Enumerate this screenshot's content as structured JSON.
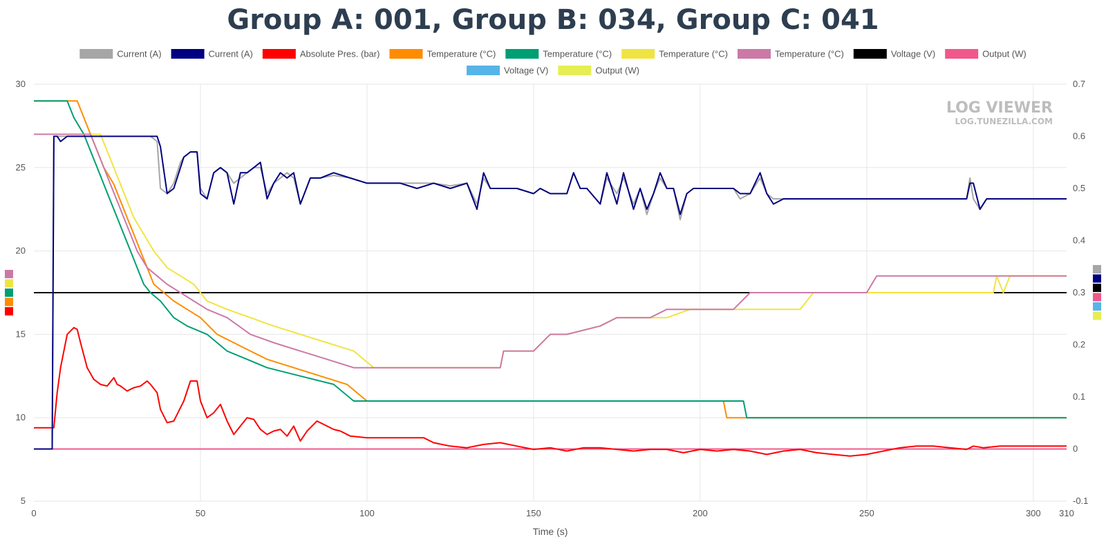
{
  "chart_data": {
    "type": "line",
    "title": "Group A: 001, Group B: 034, Group C: 041",
    "xlabel": "Time (s)",
    "xlim": [
      0,
      310
    ],
    "x_ticks": [
      0,
      50,
      100,
      150,
      200,
      250,
      300,
      310
    ],
    "y_left": {
      "range": [
        5,
        30
      ],
      "ticks": [
        5,
        10,
        15,
        20,
        25,
        30
      ]
    },
    "y_right": {
      "range": [
        -0.1,
        0.7
      ],
      "ticks": [
        -0.1,
        0,
        0.1,
        0.2,
        0.3,
        0.4,
        0.5,
        0.6,
        0.7
      ]
    },
    "grid": true,
    "legend_position": "top",
    "watermark": {
      "line1": "LOG VIEWER",
      "line2": "LOG.TUNEZILLA.COM"
    },
    "series": [
      {
        "name": "Current (A)",
        "color": "#a6a6a6",
        "axis": "right",
        "x": [
          0,
          5.5,
          6,
          7,
          10,
          15,
          20,
          25,
          30,
          35,
          37,
          38,
          40,
          42,
          44,
          45,
          47,
          49,
          50,
          52,
          54,
          56,
          58,
          60,
          62,
          64,
          66,
          68,
          70,
          72,
          74,
          76,
          78,
          80,
          83,
          86,
          90,
          95,
          100,
          105,
          110,
          115,
          120,
          125,
          130,
          133,
          135,
          137,
          140,
          145,
          150,
          152,
          155,
          160,
          162,
          164,
          166,
          170,
          172,
          175,
          177,
          180,
          182,
          184,
          186,
          188,
          190,
          192,
          194,
          196,
          198,
          200,
          205,
          210,
          212,
          215,
          218,
          220,
          222,
          225,
          230,
          235,
          240,
          250,
          260,
          270,
          280,
          281,
          282,
          284,
          286,
          290,
          300,
          310
        ],
        "y": [
          0,
          0,
          0.6,
          0.6,
          0.6,
          0.6,
          0.6,
          0.6,
          0.6,
          0.6,
          0.59,
          0.5,
          0.49,
          0.51,
          0.55,
          0.56,
          0.57,
          0.57,
          0.5,
          0.48,
          0.53,
          0.54,
          0.53,
          0.51,
          0.52,
          0.53,
          0.54,
          0.54,
          0.49,
          0.51,
          0.52,
          0.53,
          0.52,
          0.47,
          0.52,
          0.52,
          0.525,
          0.52,
          0.51,
          0.51,
          0.51,
          0.51,
          0.51,
          0.505,
          0.51,
          0.47,
          0.52,
          0.5,
          0.5,
          0.5,
          0.49,
          0.5,
          0.49,
          0.49,
          0.53,
          0.5,
          0.5,
          0.47,
          0.52,
          0.49,
          0.52,
          0.47,
          0.5,
          0.45,
          0.49,
          0.52,
          0.5,
          0.5,
          0.44,
          0.49,
          0.5,
          0.5,
          0.5,
          0.5,
          0.48,
          0.49,
          0.52,
          0.49,
          0.48,
          0.48,
          0.48,
          0.48,
          0.48,
          0.48,
          0.48,
          0.48,
          0.48,
          0.52,
          0.48,
          0.46,
          0.48,
          0.48,
          0.48,
          0.48
        ]
      },
      {
        "name": "Current (A)",
        "color": "#000080",
        "axis": "right",
        "x": [
          0,
          5.5,
          6,
          7,
          8,
          10,
          15,
          20,
          25,
          30,
          35,
          37,
          38,
          40,
          42,
          44,
          45,
          47,
          49,
          50,
          52,
          54,
          56,
          58,
          60,
          62,
          64,
          66,
          68,
          70,
          72,
          74,
          76,
          78,
          80,
          83,
          86,
          90,
          95,
          100,
          105,
          110,
          115,
          120,
          125,
          130,
          133,
          135,
          137,
          140,
          145,
          150,
          152,
          155,
          160,
          162,
          164,
          166,
          170,
          172,
          175,
          177,
          180,
          182,
          184,
          186,
          188,
          190,
          192,
          194,
          196,
          198,
          200,
          205,
          210,
          212,
          215,
          218,
          220,
          222,
          225,
          230,
          235,
          240,
          250,
          260,
          270,
          280,
          281,
          282,
          284,
          286,
          290,
          300,
          310
        ],
        "y": [
          0,
          0,
          0.6,
          0.6,
          0.59,
          0.6,
          0.6,
          0.6,
          0.6,
          0.6,
          0.6,
          0.6,
          0.58,
          0.49,
          0.5,
          0.54,
          0.56,
          0.57,
          0.57,
          0.49,
          0.48,
          0.53,
          0.54,
          0.53,
          0.47,
          0.53,
          0.53,
          0.54,
          0.55,
          0.48,
          0.51,
          0.53,
          0.52,
          0.53,
          0.47,
          0.52,
          0.52,
          0.53,
          0.52,
          0.51,
          0.51,
          0.51,
          0.5,
          0.51,
          0.5,
          0.51,
          0.46,
          0.53,
          0.5,
          0.5,
          0.5,
          0.49,
          0.5,
          0.49,
          0.49,
          0.53,
          0.5,
          0.5,
          0.47,
          0.53,
          0.47,
          0.53,
          0.46,
          0.5,
          0.46,
          0.49,
          0.53,
          0.5,
          0.5,
          0.45,
          0.49,
          0.5,
          0.5,
          0.5,
          0.5,
          0.49,
          0.49,
          0.53,
          0.49,
          0.47,
          0.48,
          0.48,
          0.48,
          0.48,
          0.48,
          0.48,
          0.48,
          0.48,
          0.51,
          0.51,
          0.46,
          0.48,
          0.48,
          0.48,
          0.48
        ]
      },
      {
        "name": "Absolute Pres. (bar)",
        "color": "#ff0000",
        "axis": "left",
        "x": [
          0,
          6,
          7,
          8,
          10,
          12,
          13,
          14,
          16,
          18,
          20,
          22,
          24,
          25,
          26,
          28,
          30,
          32,
          34,
          35,
          37,
          38,
          40,
          42,
          45,
          47,
          49,
          50,
          52,
          54,
          56,
          58,
          60,
          62,
          64,
          66,
          68,
          70,
          72,
          74,
          76,
          78,
          80,
          82,
          85,
          87,
          90,
          92,
          95,
          100,
          105,
          110,
          115,
          117,
          120,
          125,
          130,
          135,
          140,
          145,
          150,
          155,
          160,
          165,
          170,
          175,
          180,
          185,
          190,
          195,
          200,
          205,
          210,
          215,
          220,
          225,
          230,
          235,
          240,
          245,
          250,
          255,
          260,
          265,
          270,
          275,
          280,
          282,
          285,
          290,
          300,
          310
        ],
        "y": [
          9.4,
          9.4,
          11.5,
          13,
          15,
          15.4,
          15.3,
          14.5,
          13,
          12.3,
          12,
          11.9,
          12.4,
          12,
          11.9,
          11.6,
          11.8,
          11.9,
          12.2,
          12,
          11.5,
          10.5,
          9.7,
          9.8,
          11,
          12.2,
          12.2,
          11,
          10,
          10.3,
          10.8,
          9.8,
          9,
          9.5,
          10,
          9.9,
          9.3,
          9,
          9.2,
          9.3,
          8.9,
          9.5,
          8.6,
          9.2,
          9.8,
          9.6,
          9.3,
          9.2,
          8.9,
          8.8,
          8.8,
          8.8,
          8.8,
          8.8,
          8.5,
          8.3,
          8.2,
          8.4,
          8.5,
          8.3,
          8.1,
          8.2,
          8.0,
          8.2,
          8.2,
          8.1,
          8.0,
          8.1,
          8.1,
          7.9,
          8.1,
          8.0,
          8.1,
          8.0,
          7.8,
          8.0,
          8.1,
          7.9,
          7.8,
          7.7,
          7.8,
          8.0,
          8.2,
          8.3,
          8.3,
          8.2,
          8.1,
          8.3,
          8.2,
          8.3,
          8.3,
          8.3
        ]
      },
      {
        "name": "Temperature (°C)",
        "color": "#ff8c00",
        "axis": "left",
        "x": [
          0,
          13,
          15,
          17,
          19,
          21,
          24,
          26,
          28,
          30,
          32,
          34,
          36,
          39,
          42,
          46,
          50,
          55,
          60,
          65,
          70,
          78,
          86,
          94,
          100,
          118,
          125,
          207,
          208,
          212,
          230,
          250,
          270,
          290,
          300,
          310
        ],
        "y": [
          29,
          29,
          28,
          27,
          26,
          25,
          24,
          23,
          22,
          21,
          20,
          19,
          18,
          17.5,
          17,
          16.5,
          16,
          15,
          14.5,
          14,
          13.5,
          13,
          12.5,
          12,
          11,
          11,
          11,
          11,
          10,
          10,
          10,
          10,
          10,
          10,
          10,
          10
        ]
      },
      {
        "name": "Temperature (°C)",
        "color": "#009e73",
        "axis": "left",
        "x": [
          0,
          10,
          12,
          15,
          17,
          19,
          21,
          23,
          25,
          27,
          29,
          31,
          33,
          35,
          38,
          42,
          46,
          52,
          58,
          64,
          70,
          80,
          90,
          96,
          100,
          118,
          125,
          205,
          213,
          214,
          230,
          250,
          270,
          290,
          300,
          310
        ],
        "y": [
          29,
          29,
          28,
          27,
          26,
          25,
          24,
          23,
          22,
          21,
          20,
          19,
          18,
          17.5,
          17,
          16,
          15.5,
          15,
          14,
          13.5,
          13,
          12.5,
          12,
          11,
          11,
          11,
          11,
          11,
          11,
          10,
          10,
          10,
          10,
          10,
          10,
          10
        ]
      },
      {
        "name": "Temperature (°C)",
        "color": "#f0e442",
        "axis": "left",
        "x": [
          0,
          20,
          22,
          24,
          26,
          28,
          30,
          33,
          36,
          40,
          44,
          48,
          52,
          58,
          65,
          72,
          80,
          88,
          96,
          102,
          110,
          120,
          130,
          140,
          141,
          150,
          155,
          160,
          170,
          175,
          185,
          190,
          197,
          200,
          210,
          220,
          225,
          230,
          234,
          240,
          250,
          260,
          270,
          280,
          288,
          289,
          291,
          293,
          300,
          310
        ],
        "y": [
          27,
          27,
          26,
          25,
          24,
          23,
          22,
          21,
          20,
          19,
          18.5,
          18,
          17,
          16.5,
          16,
          15.5,
          15,
          14.5,
          14,
          13,
          13,
          13,
          13,
          13,
          14,
          14,
          15,
          15,
          15.5,
          16,
          16,
          16,
          16.5,
          16.5,
          16.5,
          16.5,
          16.5,
          16.5,
          17.5,
          17.5,
          17.5,
          17.5,
          17.5,
          17.5,
          17.5,
          18.5,
          17.5,
          18.5,
          18.5,
          18.5
        ]
      },
      {
        "name": "Temperature (°C)",
        "color": "#cc79a7",
        "axis": "left",
        "x": [
          0,
          17,
          19,
          21,
          23,
          25,
          27,
          29,
          31,
          34,
          37,
          40,
          44,
          48,
          52,
          58,
          65,
          72,
          80,
          88,
          96,
          102,
          110,
          120,
          130,
          140,
          141,
          150,
          155,
          160,
          170,
          175,
          185,
          190,
          200,
          210,
          215,
          220,
          230,
          235,
          240,
          250,
          253,
          260,
          270,
          280,
          290,
          300,
          310
        ],
        "y": [
          27,
          27,
          26,
          25,
          24,
          23,
          22,
          21,
          20,
          19,
          18.5,
          18,
          17.5,
          17,
          16.5,
          16,
          15,
          14.5,
          14,
          13.5,
          13,
          13,
          13,
          13,
          13,
          13,
          14,
          14,
          15,
          15,
          15.5,
          16,
          16,
          16.5,
          16.5,
          16.5,
          17.5,
          17.5,
          17.5,
          17.5,
          17.5,
          17.5,
          18.5,
          18.5,
          18.5,
          18.5,
          18.5,
          18.5,
          18.5
        ]
      },
      {
        "name": "Voltage (V)",
        "color": "#000000",
        "axis": "right",
        "x": [
          0,
          310
        ],
        "y": [
          0.3,
          0.3
        ]
      },
      {
        "name": "Output (W)",
        "color": "#f0588c",
        "axis": "right",
        "x": [
          0,
          310
        ],
        "y": [
          0,
          0
        ]
      },
      {
        "name": "Voltage (V)",
        "color": "#56b4e9",
        "axis": "right",
        "x": [],
        "y": []
      },
      {
        "name": "Output (W)",
        "color": "#e5ef55",
        "axis": "right",
        "x": [],
        "y": []
      }
    ]
  }
}
